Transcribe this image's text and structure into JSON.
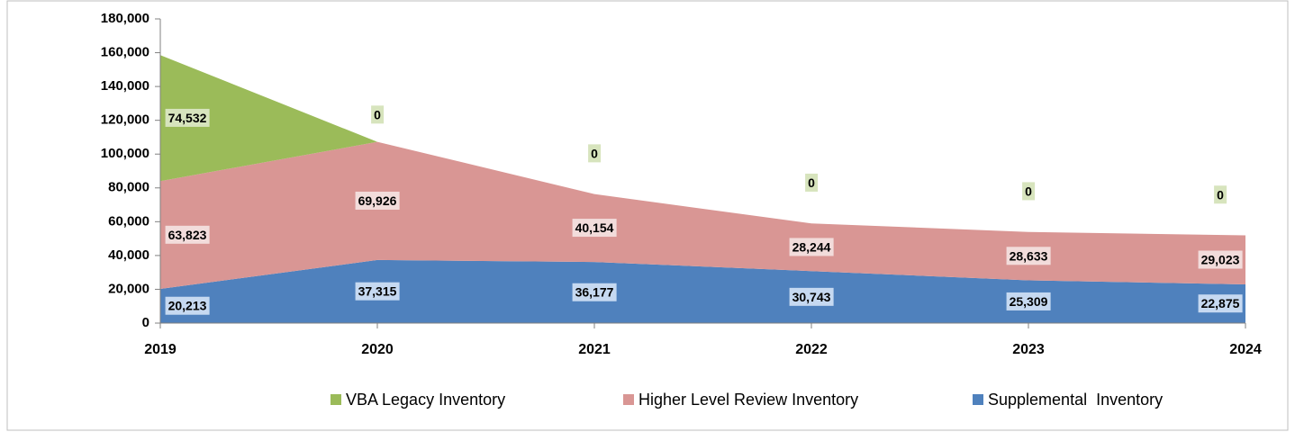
{
  "chart_data": {
    "type": "stacked_area",
    "categories": [
      "2019",
      "2020",
      "2021",
      "2022",
      "2023",
      "2024"
    ],
    "series": [
      {
        "name": "Supplemental  Inventory",
        "color": "#4f81bd",
        "label_color": "#c6d9f1",
        "values": [
          20213,
          37315,
          36177,
          30743,
          25309,
          22875
        ],
        "value_labels": [
          "20,213",
          "37,315",
          "36,177",
          "30,743",
          "25,309",
          "22,875"
        ]
      },
      {
        "name": "Higher Level Review Inventory",
        "color": "#d99694",
        "label_color": "#f2dcdb",
        "values": [
          63823,
          69926,
          40154,
          28244,
          28633,
          29023
        ],
        "value_labels": [
          "63,823",
          "69,926",
          "40,154",
          "28,244",
          "28,633",
          "29,023"
        ]
      },
      {
        "name": "VBA Legacy Inventory",
        "color": "#9bbb59",
        "label_color": "#d7e4bd",
        "values": [
          74532,
          0,
          0,
          0,
          0,
          0
        ],
        "value_labels": [
          "74,532",
          "0",
          "0",
          "0",
          "0",
          "0"
        ]
      }
    ],
    "ylim": [
      0,
      180000
    ],
    "yticks": [
      0,
      {
        "value": 20000,
        "label": "20,000"
      },
      {
        "value": 40000,
        "label": "40,000"
      },
      {
        "value": 60000,
        "label": "60,000"
      },
      {
        "value": 80000,
        "label": "80,000"
      },
      {
        "value": 100000,
        "label": "100,000"
      },
      {
        "value": 120000,
        "label": "120,000"
      },
      {
        "value": 140000,
        "label": "140,000"
      },
      {
        "value": 160000,
        "label": "160,000"
      },
      {
        "value": 180000,
        "label": "180,000"
      }
    ],
    "grid": false,
    "legend": "bottom"
  }
}
